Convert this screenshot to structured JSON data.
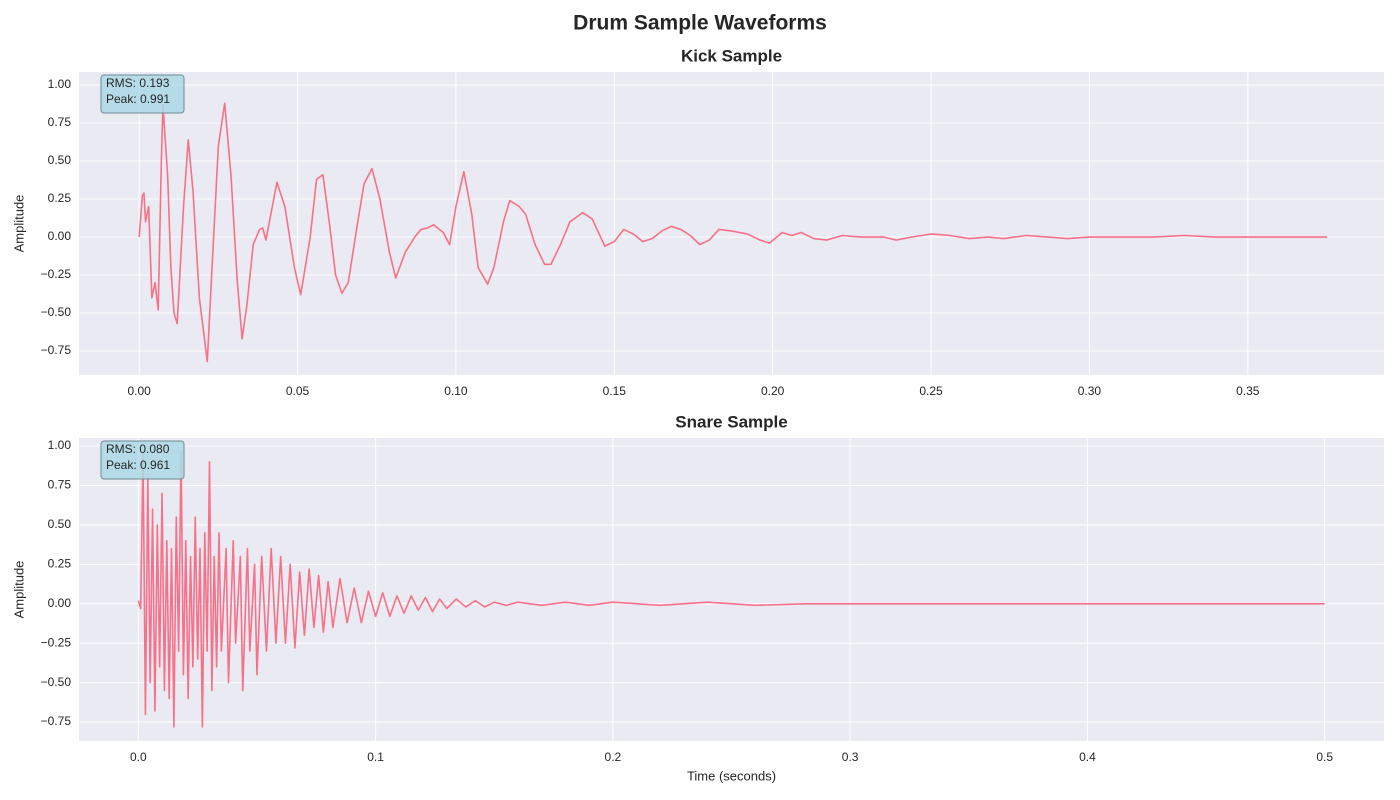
{
  "title": "Drum Sample Waveforms",
  "chart_data": [
    {
      "type": "line",
      "title": "Kick Sample",
      "ylabel": "Amplitude",
      "color": "#f77189",
      "grid": true,
      "annotation": [
        "RMS: 0.193",
        "Peak: 0.991"
      ],
      "xlim": [
        -0.019,
        0.393
      ],
      "ylim": [
        -0.908,
        1.086
      ],
      "xticks": [
        {
          "value": 0,
          "label": "0.00"
        },
        {
          "value": 0.05,
          "label": "0.05"
        },
        {
          "value": 0.1,
          "label": "0.10"
        },
        {
          "value": 0.15,
          "label": "0.15"
        },
        {
          "value": 0.2,
          "label": "0.20"
        },
        {
          "value": 0.25,
          "label": "0.25"
        },
        {
          "value": 0.3,
          "label": "0.30"
        },
        {
          "value": 0.35,
          "label": "0.35"
        }
      ],
      "yticks": [
        {
          "value": -0.75,
          "label": "−0.75"
        },
        {
          "value": -0.5,
          "label": "−0.50"
        },
        {
          "value": -0.25,
          "label": "−0.25"
        },
        {
          "value": 0,
          "label": "0.00"
        },
        {
          "value": 0.25,
          "label": "0.25"
        },
        {
          "value": 0.5,
          "label": "0.50"
        },
        {
          "value": 0.75,
          "label": "0.75"
        },
        {
          "value": 1,
          "label": "1.00"
        }
      ],
      "x": [
        0.0,
        0.001,
        0.0015,
        0.002,
        0.003,
        0.004,
        0.005,
        0.006,
        0.007,
        0.0075,
        0.009,
        0.01,
        0.011,
        0.012,
        0.014,
        0.0155,
        0.017,
        0.019,
        0.0215,
        0.023,
        0.025,
        0.027,
        0.029,
        0.031,
        0.0325,
        0.034,
        0.036,
        0.038,
        0.039,
        0.04,
        0.0435,
        0.046,
        0.049,
        0.051,
        0.054,
        0.056,
        0.058,
        0.06,
        0.062,
        0.064,
        0.066,
        0.069,
        0.071,
        0.0735,
        0.076,
        0.079,
        0.081,
        0.084,
        0.087,
        0.089,
        0.091,
        0.093,
        0.096,
        0.098,
        0.1,
        0.1025,
        0.105,
        0.107,
        0.11,
        0.112,
        0.115,
        0.117,
        0.12,
        0.122,
        0.125,
        0.128,
        0.13,
        0.133,
        0.136,
        0.14,
        0.143,
        0.147,
        0.15,
        0.153,
        0.156,
        0.159,
        0.162,
        0.165,
        0.168,
        0.171,
        0.174,
        0.177,
        0.18,
        0.183,
        0.187,
        0.192,
        0.196,
        0.199,
        0.203,
        0.206,
        0.209,
        0.213,
        0.217,
        0.222,
        0.228,
        0.235,
        0.239,
        0.244,
        0.25,
        0.256,
        0.262,
        0.268,
        0.273,
        0.28,
        0.287,
        0.293,
        0.3,
        0.31,
        0.32,
        0.33,
        0.34,
        0.35,
        0.36,
        0.375
      ],
      "values": [
        0.0,
        0.27,
        0.29,
        0.1,
        0.2,
        -0.4,
        -0.3,
        -0.48,
        0.5,
        0.87,
        0.4,
        -0.2,
        -0.5,
        -0.57,
        0.2,
        0.64,
        0.3,
        -0.4,
        -0.82,
        -0.2,
        0.6,
        0.88,
        0.4,
        -0.3,
        -0.67,
        -0.45,
        -0.05,
        0.05,
        0.06,
        -0.02,
        0.36,
        0.2,
        -0.2,
        -0.38,
        0.0,
        0.38,
        0.41,
        0.1,
        -0.25,
        -0.37,
        -0.3,
        0.1,
        0.35,
        0.45,
        0.25,
        -0.1,
        -0.27,
        -0.1,
        0.0,
        0.05,
        0.06,
        0.08,
        0.03,
        -0.05,
        0.2,
        0.43,
        0.15,
        -0.2,
        -0.31,
        -0.2,
        0.1,
        0.24,
        0.2,
        0.15,
        -0.05,
        -0.18,
        -0.18,
        -0.05,
        0.1,
        0.16,
        0.12,
        -0.06,
        -0.03,
        0.05,
        0.02,
        -0.03,
        -0.01,
        0.04,
        0.07,
        0.05,
        0.01,
        -0.05,
        -0.02,
        0.05,
        0.04,
        0.02,
        -0.02,
        -0.04,
        0.03,
        0.01,
        0.03,
        -0.01,
        -0.02,
        0.01,
        0.0,
        0.0,
        -0.02,
        0.0,
        0.02,
        0.01,
        -0.01,
        0.0,
        -0.01,
        0.01,
        0.0,
        -0.01,
        0.0,
        0.0,
        0.0,
        0.01,
        0.0,
        0.0,
        0.0,
        0.0
      ]
    },
    {
      "type": "line",
      "title": "Snare Sample",
      "ylabel": "Amplitude",
      "xlabel": "Time (seconds)",
      "color": "#f77189",
      "grid": true,
      "annotation": [
        "RMS: 0.080",
        "Peak: 0.961"
      ],
      "xlim": [
        -0.025,
        0.525
      ],
      "ylim": [
        -0.87,
        1.051
      ],
      "xticks": [
        {
          "value": 0,
          "label": "0.0"
        },
        {
          "value": 0.1,
          "label": "0.1"
        },
        {
          "value": 0.2,
          "label": "0.2"
        },
        {
          "value": 0.3,
          "label": "0.3"
        },
        {
          "value": 0.4,
          "label": "0.4"
        },
        {
          "value": 0.5,
          "label": "0.5"
        }
      ],
      "yticks": [
        {
          "value": -0.75,
          "label": "−0.75"
        },
        {
          "value": -0.5,
          "label": "−0.50"
        },
        {
          "value": -0.25,
          "label": "−0.25"
        },
        {
          "value": 0,
          "label": "0.00"
        },
        {
          "value": 0.25,
          "label": "0.25"
        },
        {
          "value": 0.5,
          "label": "0.50"
        },
        {
          "value": 0.75,
          "label": "0.75"
        },
        {
          "value": 1,
          "label": "1.00"
        }
      ],
      "x": [
        0.0,
        0.001,
        0.002,
        0.003,
        0.004,
        0.005,
        0.006,
        0.007,
        0.008,
        0.009,
        0.01,
        0.011,
        0.012,
        0.013,
        0.014,
        0.015,
        0.016,
        0.017,
        0.018,
        0.019,
        0.02,
        0.021,
        0.022,
        0.023,
        0.024,
        0.025,
        0.026,
        0.027,
        0.028,
        0.029,
        0.03,
        0.031,
        0.032,
        0.033,
        0.034,
        0.035,
        0.037,
        0.038,
        0.04,
        0.041,
        0.043,
        0.044,
        0.046,
        0.047,
        0.049,
        0.05,
        0.052,
        0.054,
        0.056,
        0.058,
        0.06,
        0.062,
        0.064,
        0.066,
        0.068,
        0.07,
        0.072,
        0.074,
        0.076,
        0.078,
        0.08,
        0.082,
        0.085,
        0.088,
        0.091,
        0.094,
        0.097,
        0.1,
        0.103,
        0.106,
        0.109,
        0.112,
        0.115,
        0.118,
        0.121,
        0.124,
        0.127,
        0.13,
        0.134,
        0.138,
        0.142,
        0.146,
        0.15,
        0.155,
        0.16,
        0.17,
        0.18,
        0.19,
        0.2,
        0.22,
        0.24,
        0.26,
        0.281,
        0.3,
        0.4,
        0.5
      ],
      "values": [
        0.02,
        -0.03,
        0.95,
        -0.7,
        0.8,
        -0.5,
        0.6,
        -0.68,
        0.5,
        -0.4,
        0.7,
        -0.55,
        0.4,
        -0.6,
        0.35,
        -0.78,
        0.55,
        -0.3,
        0.97,
        -0.45,
        0.4,
        -0.6,
        0.3,
        -0.4,
        0.55,
        -0.35,
        0.35,
        -0.78,
        0.45,
        -0.3,
        0.9,
        -0.55,
        0.3,
        -0.4,
        0.45,
        -0.3,
        0.35,
        -0.5,
        0.4,
        -0.25,
        0.3,
        -0.55,
        0.35,
        -0.3,
        0.25,
        -0.45,
        0.3,
        -0.3,
        0.35,
        -0.25,
        0.3,
        -0.25,
        0.25,
        -0.28,
        0.2,
        -0.2,
        0.22,
        -0.15,
        0.18,
        -0.18,
        0.14,
        -0.15,
        0.16,
        -0.12,
        0.1,
        -0.12,
        0.08,
        -0.08,
        0.07,
        -0.08,
        0.05,
        -0.06,
        0.05,
        -0.04,
        0.04,
        -0.05,
        0.03,
        -0.03,
        0.03,
        -0.02,
        0.02,
        -0.02,
        0.01,
        -0.01,
        0.01,
        -0.01,
        0.01,
        -0.01,
        0.01,
        -0.01,
        0.01,
        -0.01,
        0.0,
        0.0,
        0.0,
        0.0
      ]
    }
  ]
}
